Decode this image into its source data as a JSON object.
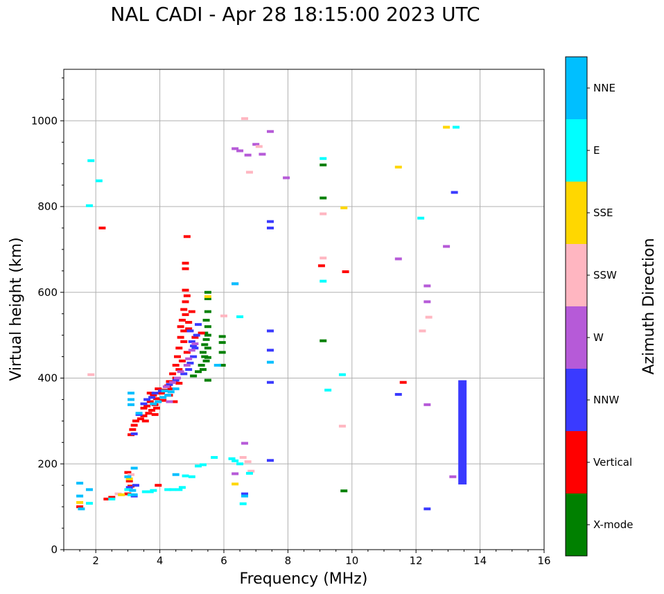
{
  "chart_data": {
    "type": "scatter",
    "title": "NAL CADI - Apr 28 18:15:00 2023 UTC",
    "xlabel": "Frequency (MHz)",
    "ylabel": "Virtual height (km)",
    "xlim": [
      1,
      16
    ],
    "ylim": [
      0,
      1120
    ],
    "xticks": [
      2,
      4,
      6,
      8,
      10,
      12,
      14,
      16
    ],
    "xtick_labels": [
      "2",
      "4",
      "6",
      "8",
      "10",
      "12",
      "14",
      "16"
    ],
    "yticks": [
      0,
      200,
      400,
      600,
      800,
      1000
    ],
    "ytick_labels": [
      "0",
      "200",
      "400",
      "600",
      "800",
      "1000"
    ],
    "grid": true,
    "colorbar": {
      "label": "Azimuth Direction",
      "categories": [
        {
          "name": "X-mode",
          "color": "#008000"
        },
        {
          "name": "Vertical",
          "color": "#ff0000"
        },
        {
          "name": "NNW",
          "color": "#3a3aff"
        },
        {
          "name": "W",
          "color": "#b65ad8"
        },
        {
          "name": "SSW",
          "color": "#ffb6c1"
        },
        {
          "name": "SSE",
          "color": "#ffd700"
        },
        {
          "name": "E",
          "color": "#00ffff"
        },
        {
          "name": "NNE",
          "color": "#00bfff"
        }
      ]
    },
    "series": [
      {
        "name": "X-mode",
        "points": [
          [
            5.5,
            600
          ],
          [
            5.5,
            585
          ],
          [
            5.5,
            555
          ],
          [
            5.45,
            535
          ],
          [
            5.5,
            520
          ],
          [
            5.4,
            505
          ],
          [
            5.45,
            490
          ],
          [
            5.4,
            478
          ],
          [
            5.5,
            470
          ],
          [
            5.35,
            460
          ],
          [
            5.4,
            450
          ],
          [
            5.45,
            440
          ],
          [
            5.3,
            430
          ],
          [
            5.35,
            420
          ],
          [
            5.2,
            415
          ],
          [
            5.5,
            500
          ],
          [
            5.5,
            448
          ],
          [
            5.95,
            497
          ],
          [
            5.95,
            483
          ],
          [
            5.95,
            460
          ],
          [
            5.95,
            430
          ],
          [
            5.5,
            395
          ],
          [
            9.1,
            897
          ],
          [
            9.1,
            820
          ],
          [
            9.1,
            487
          ],
          [
            9.75,
            137
          ],
          [
            5.05,
            405
          ]
        ]
      },
      {
        "name": "Vertical",
        "points": [
          [
            4.85,
            730
          ],
          [
            4.8,
            668
          ],
          [
            4.8,
            655
          ],
          [
            4.8,
            605
          ],
          [
            4.85,
            592
          ],
          [
            4.8,
            578
          ],
          [
            4.75,
            560
          ],
          [
            4.8,
            548
          ],
          [
            4.7,
            535
          ],
          [
            4.9,
            530
          ],
          [
            4.65,
            520
          ],
          [
            4.75,
            510
          ],
          [
            4.65,
            495
          ],
          [
            4.75,
            485
          ],
          [
            4.6,
            470
          ],
          [
            4.85,
            460
          ],
          [
            4.55,
            450
          ],
          [
            4.7,
            440
          ],
          [
            4.5,
            430
          ],
          [
            4.6,
            420
          ],
          [
            4.4,
            410
          ],
          [
            4.5,
            400
          ],
          [
            4.3,
            392
          ],
          [
            4.6,
            388
          ],
          [
            4.25,
            382
          ],
          [
            4.35,
            375
          ],
          [
            4.15,
            372
          ],
          [
            3.95,
            375
          ],
          [
            4.05,
            365
          ],
          [
            3.8,
            360
          ],
          [
            3.9,
            352
          ],
          [
            4.1,
            348
          ],
          [
            3.7,
            345
          ],
          [
            3.85,
            338
          ],
          [
            3.6,
            335
          ],
          [
            3.75,
            325
          ],
          [
            3.65,
            318
          ],
          [
            3.5,
            312
          ],
          [
            3.4,
            305
          ],
          [
            3.55,
            300
          ],
          [
            3.25,
            300
          ],
          [
            3.2,
            290
          ],
          [
            3.15,
            280
          ],
          [
            3.85,
            315
          ],
          [
            3.9,
            330
          ],
          [
            4.45,
            345
          ],
          [
            3.1,
            268
          ],
          [
            2.2,
            750
          ],
          [
            5.0,
            555
          ],
          [
            5.3,
            505
          ],
          [
            4.9,
            515
          ],
          [
            5.1,
            495
          ],
          [
            9.05,
            662
          ],
          [
            9.8,
            648
          ],
          [
            11.6,
            390
          ],
          [
            3.0,
            180
          ],
          [
            3.05,
            160
          ],
          [
            3.1,
            148
          ],
          [
            3.0,
            130
          ],
          [
            2.5,
            122
          ],
          [
            2.35,
            118
          ],
          [
            1.5,
            100
          ],
          [
            3.95,
            150
          ],
          [
            4.0,
            365
          ],
          [
            4.3,
            360
          ],
          [
            3.5,
            330
          ],
          [
            3.7,
            365
          ],
          [
            4.45,
            390
          ]
        ]
      },
      {
        "name": "NNW",
        "points": [
          [
            4.9,
            420
          ],
          [
            4.95,
            435
          ],
          [
            5.05,
            450
          ],
          [
            5.1,
            470
          ],
          [
            5.0,
            485
          ],
          [
            5.15,
            500
          ],
          [
            4.95,
            510
          ],
          [
            5.2,
            525
          ],
          [
            5.05,
            475
          ],
          [
            4.75,
            410
          ],
          [
            4.5,
            395
          ],
          [
            4.3,
            385
          ],
          [
            4.05,
            370
          ],
          [
            3.85,
            365
          ],
          [
            3.75,
            355
          ],
          [
            3.6,
            350
          ],
          [
            3.5,
            340
          ],
          [
            3.35,
            315
          ],
          [
            3.2,
            270
          ],
          [
            7.45,
            765
          ],
          [
            7.45,
            750
          ],
          [
            7.45,
            510
          ],
          [
            7.45,
            465
          ],
          [
            7.45,
            390
          ],
          [
            7.45,
            208
          ],
          [
            13.2,
            833
          ],
          [
            11.45,
            362
          ],
          [
            12.35,
            95
          ],
          [
            6.65,
            130
          ],
          [
            3.05,
            145
          ],
          [
            3.2,
            125
          ],
          [
            3.25,
            150
          ]
        ]
      },
      {
        "name": "W",
        "points": [
          [
            6.35,
            935
          ],
          [
            6.5,
            930
          ],
          [
            6.75,
            920
          ],
          [
            7.2,
            922
          ],
          [
            7.0,
            945
          ],
          [
            6.35,
            620
          ],
          [
            5.0,
            465
          ],
          [
            5.1,
            480
          ],
          [
            4.9,
            445
          ],
          [
            4.85,
            430
          ],
          [
            4.65,
            415
          ],
          [
            4.55,
            400
          ],
          [
            4.4,
            390
          ],
          [
            4.2,
            380
          ],
          [
            4.3,
            345
          ],
          [
            12.35,
            615
          ],
          [
            12.35,
            578
          ],
          [
            12.35,
            338
          ],
          [
            12.95,
            707
          ],
          [
            11.45,
            678
          ],
          [
            13.15,
            170
          ],
          [
            6.35,
            177
          ],
          [
            6.65,
            248
          ],
          [
            7.95,
            867
          ],
          [
            7.45,
            975
          ]
        ]
      },
      {
        "name": "SSW",
        "points": [
          [
            6.65,
            1005
          ],
          [
            7.1,
            940
          ],
          [
            6.8,
            880
          ],
          [
            9.1,
            783
          ],
          [
            9.1,
            680
          ],
          [
            6.0,
            545
          ],
          [
            12.4,
            542
          ],
          [
            12.2,
            510
          ],
          [
            6.6,
            215
          ],
          [
            6.75,
            205
          ],
          [
            6.85,
            183
          ],
          [
            1.85,
            408
          ],
          [
            2.7,
            130
          ],
          [
            9.7,
            288
          ],
          [
            3.1,
            175
          ]
        ]
      },
      {
        "name": "SSE",
        "points": [
          [
            12.95,
            985
          ],
          [
            11.45,
            892
          ],
          [
            9.75,
            797
          ],
          [
            5.5,
            590
          ],
          [
            6.35,
            153
          ],
          [
            3.05,
            165
          ],
          [
            2.8,
            128
          ],
          [
            1.5,
            110
          ]
        ]
      },
      {
        "name": "E",
        "points": [
          [
            13.25,
            985
          ],
          [
            9.1,
            912
          ],
          [
            9.1,
            626
          ],
          [
            9.7,
            408
          ],
          [
            9.25,
            372
          ],
          [
            12.15,
            773
          ],
          [
            1.85,
            907
          ],
          [
            2.1,
            860
          ],
          [
            1.8,
            802
          ],
          [
            6.5,
            543
          ],
          [
            6.25,
            212
          ],
          [
            6.35,
            207
          ],
          [
            6.5,
            200
          ],
          [
            6.8,
            178
          ],
          [
            6.6,
            107
          ],
          [
            5.35,
            198
          ],
          [
            5.2,
            195
          ],
          [
            5.0,
            170
          ],
          [
            4.8,
            172
          ],
          [
            4.7,
            145
          ],
          [
            4.6,
            140
          ],
          [
            4.4,
            140
          ],
          [
            4.25,
            140
          ],
          [
            3.8,
            138
          ],
          [
            3.7,
            135
          ],
          [
            3.55,
            135
          ],
          [
            3.1,
            128
          ],
          [
            3.0,
            140
          ],
          [
            2.5,
            118
          ],
          [
            1.8,
            108
          ],
          [
            5.7,
            215
          ]
        ]
      },
      {
        "name": "NNE",
        "points": [
          [
            4.5,
            375
          ],
          [
            4.35,
            368
          ],
          [
            4.25,
            360
          ],
          [
            4.1,
            355
          ],
          [
            3.95,
            345
          ],
          [
            3.8,
            340
          ],
          [
            4.15,
            370
          ],
          [
            3.35,
            318
          ],
          [
            3.1,
            365
          ],
          [
            3.1,
            350
          ],
          [
            3.1,
            338
          ],
          [
            3.2,
            190
          ],
          [
            3.0,
            170
          ],
          [
            3.15,
            138
          ],
          [
            3.2,
            128
          ],
          [
            6.35,
            620
          ],
          [
            5.8,
            430
          ],
          [
            7.45,
            437
          ],
          [
            1.5,
            125
          ],
          [
            1.55,
            95
          ],
          [
            1.5,
            155
          ],
          [
            1.8,
            140
          ],
          [
            4.5,
            175
          ],
          [
            6.65,
            125
          ]
        ]
      }
    ],
    "bars": [
      {
        "series": "NNW",
        "x": 13.45,
        "y0": 152,
        "y1": 395
      }
    ]
  }
}
